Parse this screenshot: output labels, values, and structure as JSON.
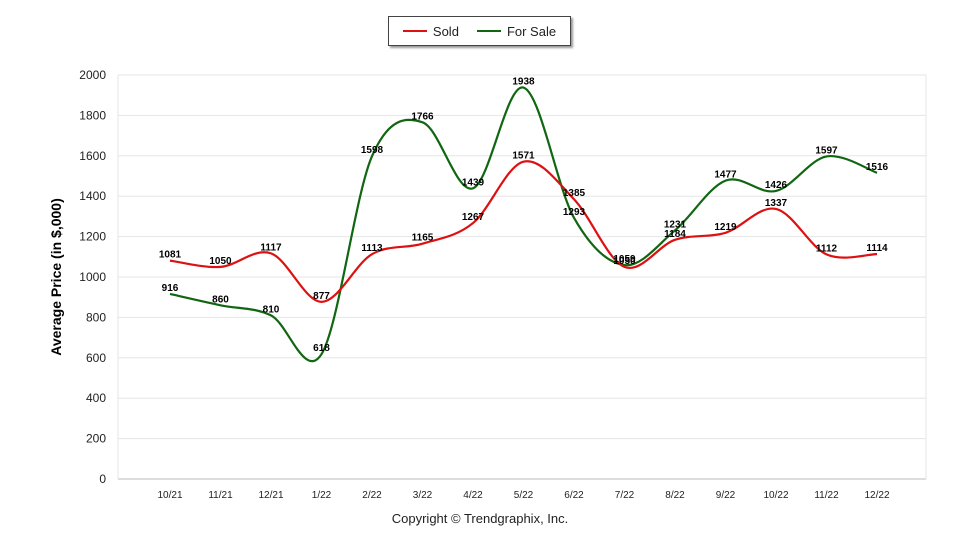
{
  "chart_data": {
    "type": "line",
    "categories": [
      "10/21",
      "11/21",
      "12/21",
      "1/22",
      "2/22",
      "3/22",
      "4/22",
      "5/22",
      "6/22",
      "7/22",
      "8/22",
      "9/22",
      "10/22",
      "11/22",
      "12/22"
    ],
    "series": [
      {
        "name": "Sold",
        "color": "#dd1111",
        "values": [
          1081,
          1050,
          1117,
          877,
          1113,
          1165,
          1267,
          1571,
          1385,
          1050,
          1184,
          1219,
          1337,
          1112,
          1114
        ]
      },
      {
        "name": "For Sale",
        "color": "#116611",
        "values": [
          916,
          860,
          810,
          618,
          1598,
          1766,
          1439,
          1938,
          1293,
          1059,
          1231,
          1477,
          1426,
          1597,
          1516
        ]
      }
    ],
    "ylabel": "Average Price (in $,000)",
    "xlabel": "",
    "ylim": [
      0,
      2000
    ],
    "yticks": [
      0,
      200,
      400,
      600,
      800,
      1000,
      1200,
      1400,
      1600,
      1800,
      2000
    ],
    "grid": true,
    "legend_position": "top-center"
  },
  "footer": {
    "copyright": "Copyright © Trendgraphix, Inc."
  }
}
